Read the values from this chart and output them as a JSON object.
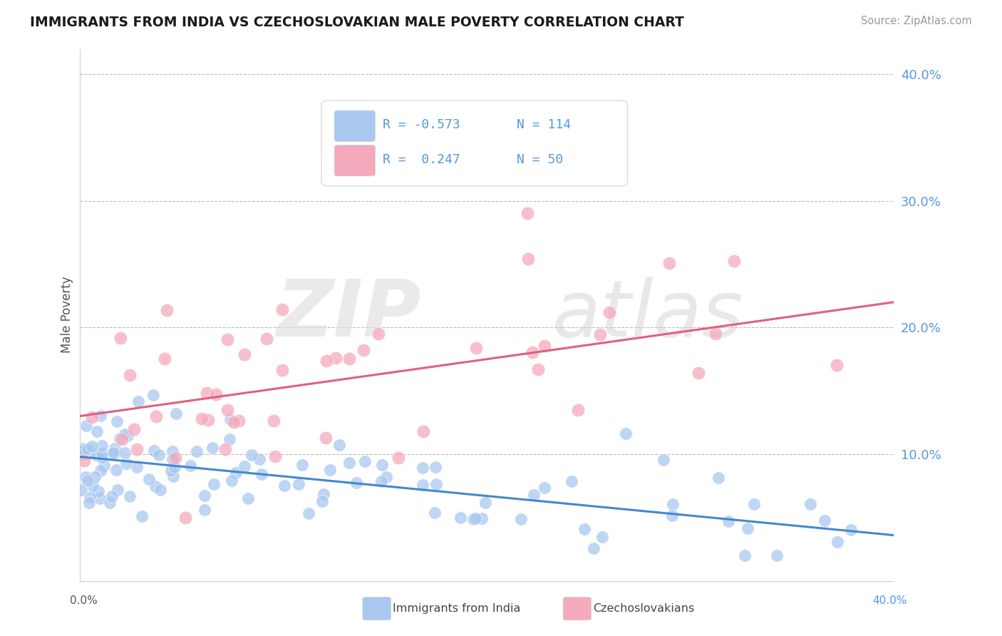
{
  "title": "IMMIGRANTS FROM INDIA VS CZECHOSLOVAKIAN MALE POVERTY CORRELATION CHART",
  "source": "Source: ZipAtlas.com",
  "ylabel": "Male Poverty",
  "xlim": [
    0.0,
    0.4
  ],
  "ylim": [
    0.0,
    0.42
  ],
  "yticks": [
    0.1,
    0.2,
    0.3,
    0.4
  ],
  "ytick_labels": [
    "10.0%",
    "20.0%",
    "30.0%",
    "40.0%"
  ],
  "legend_india_r": "-0.573",
  "legend_india_n": "114",
  "legend_czech_r": "0.247",
  "legend_czech_n": "50",
  "india_color": "#A8C8F0",
  "czech_color": "#F5AABB",
  "india_line_color": "#4488CC",
  "czech_line_color": "#E06080",
  "background_color": "#FFFFFF",
  "ytick_color": "#5599DD",
  "india_line_intercept": 0.098,
  "india_line_slope": -0.155,
  "czech_line_intercept": 0.13,
  "czech_line_slope": 0.225
}
